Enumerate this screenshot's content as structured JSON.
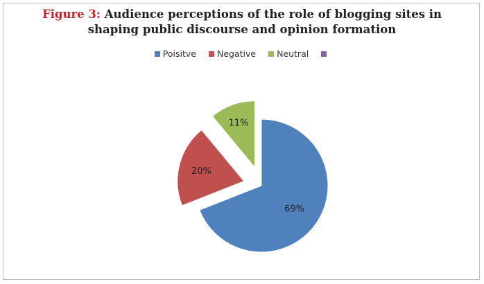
{
  "chart_data": {
    "type": "pie",
    "title_prefix": "Figure 3:",
    "title_line1": "Audience perceptions of the role of blogging sites in",
    "title_line2": "shaping public discourse and opinion formation",
    "legend_placement": "top",
    "categories": [
      "Poisitve",
      "Negative",
      "Neutral",
      ""
    ],
    "values": [
      69,
      20,
      11,
      0
    ],
    "data_labels": [
      "69%",
      "20%",
      "11%",
      ""
    ],
    "colors": [
      "#4f81bd",
      "#c0504d",
      "#9bbb59",
      "#8064a2"
    ]
  }
}
